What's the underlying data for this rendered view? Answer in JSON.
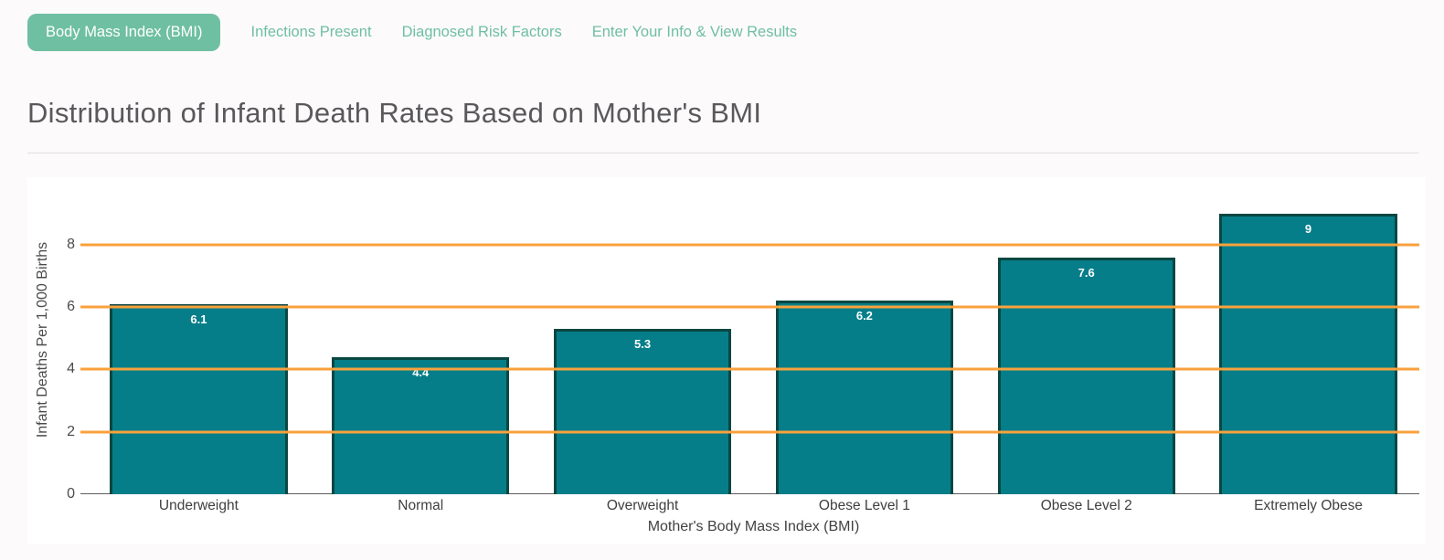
{
  "tabs": [
    {
      "label": "Body Mass Index (BMI)",
      "active": true
    },
    {
      "label": "Infections Present",
      "active": false
    },
    {
      "label": "Diagnosed Risk Factors",
      "active": false
    },
    {
      "label": "Enter Your Info & View Results",
      "active": false
    }
  ],
  "page_title": "Distribution of Infant Death Rates Based on Mother's BMI",
  "colors": {
    "tab_green": "#6fbfa2",
    "bar_fill": "#057e89",
    "bar_border": "#0a4742",
    "gridline_orange": "#f9a13c",
    "page_bg": "#fcfafb",
    "card_bg": "#ffffff"
  },
  "chart_data": {
    "type": "bar",
    "title": "Distribution of Infant Death Rates Based on Mother's BMI",
    "categories": [
      "Underweight",
      "Normal",
      "Overweight",
      "Obese Level 1",
      "Obese Level 2",
      "Extremely Obese"
    ],
    "values": [
      6.1,
      4.4,
      5.3,
      6.2,
      7.6,
      9
    ],
    "value_labels": [
      "6.1",
      "4.4",
      "5.3",
      "6.2",
      "7.6",
      "9"
    ],
    "xlabel": "Mother's Body Mass Index (BMI)",
    "ylabel": "Infant Deaths Per 1,000 Births",
    "yticks": [
      0,
      2,
      4,
      6,
      8
    ],
    "ylim": [
      0,
      9.9
    ],
    "grid": "horizontal",
    "legend": "none"
  }
}
